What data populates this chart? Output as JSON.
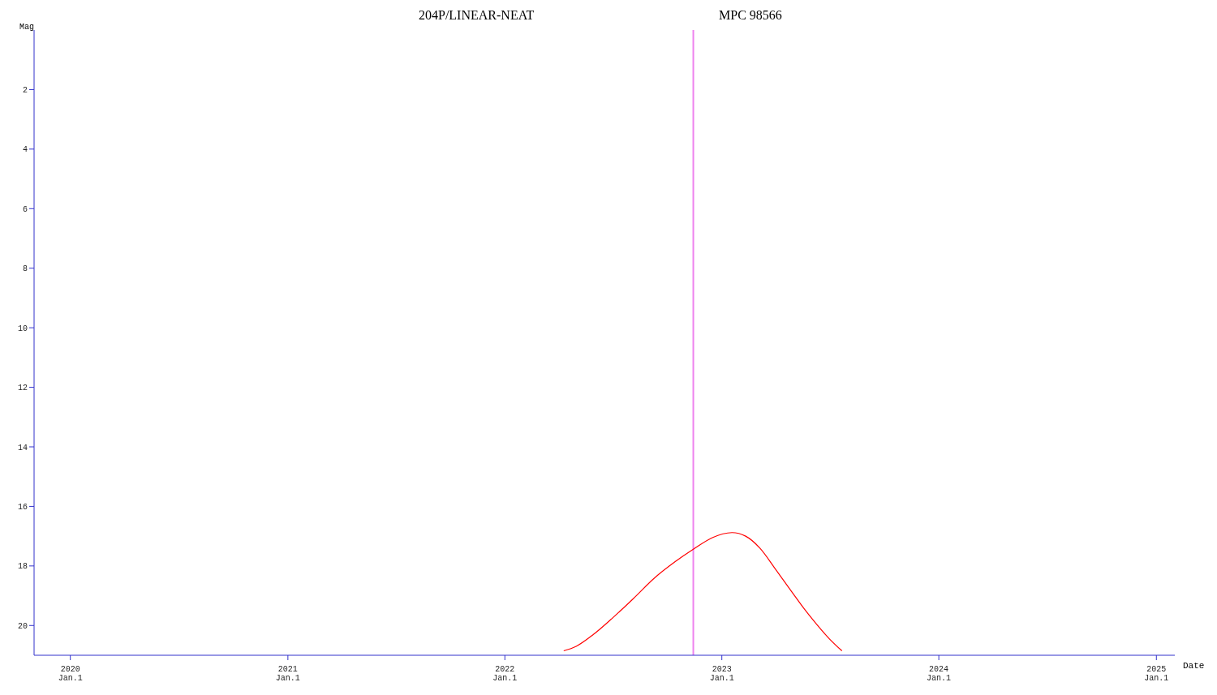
{
  "chart_data": {
    "type": "line",
    "title": "204P/LINEAR-NEAT",
    "subtitle": "MPC 98566",
    "xlabel": "Date",
    "ylabel": "Mag",
    "x": [
      "2022-04-10",
      "2022-05-01",
      "2022-05-30",
      "2022-07-01",
      "2022-08-05",
      "2022-09-10",
      "2022-10-15",
      "2022-11-14",
      "2022-12-16",
      "2023-01-18",
      "2023-02-10",
      "2023-03-06",
      "2023-04-01",
      "2023-04-28",
      "2023-05-20",
      "2023-06-07",
      "2023-07-01",
      "2023-07-22"
    ],
    "series": [
      {
        "color": "#ff0000",
        "values": [
          20.85,
          20.7,
          20.3,
          19.75,
          19.1,
          18.4,
          17.85,
          17.44,
          17.05,
          16.88,
          17.0,
          17.4,
          18.1,
          18.85,
          19.45,
          19.9,
          20.45,
          20.85
        ]
      }
    ],
    "xlim": [
      "2019-11-01",
      "2025-02-01"
    ],
    "xticks": [
      {
        "value": "2020-01-01",
        "label": "2020 Jan.1"
      },
      {
        "value": "2021-01-01",
        "label": "2021 Jan.1"
      },
      {
        "value": "2022-01-01",
        "label": "2022 Jan.1"
      },
      {
        "value": "2023-01-01",
        "label": "2023 Jan.1"
      },
      {
        "value": "2024-01-01",
        "label": "2024 Jan.1"
      },
      {
        "value": "2025-01-01",
        "label": "2025 Jan.1"
      }
    ],
    "ylim": [
      21,
      0
    ],
    "yticks": [
      2,
      4,
      6,
      8,
      10,
      12,
      14,
      16,
      18,
      20
    ],
    "ref_lines": [
      {
        "axis": "x",
        "value": "2022-11-14",
        "color": "#ee82ee"
      }
    ],
    "grid": false,
    "legend": false,
    "marker": "none",
    "line_style": "solid"
  }
}
